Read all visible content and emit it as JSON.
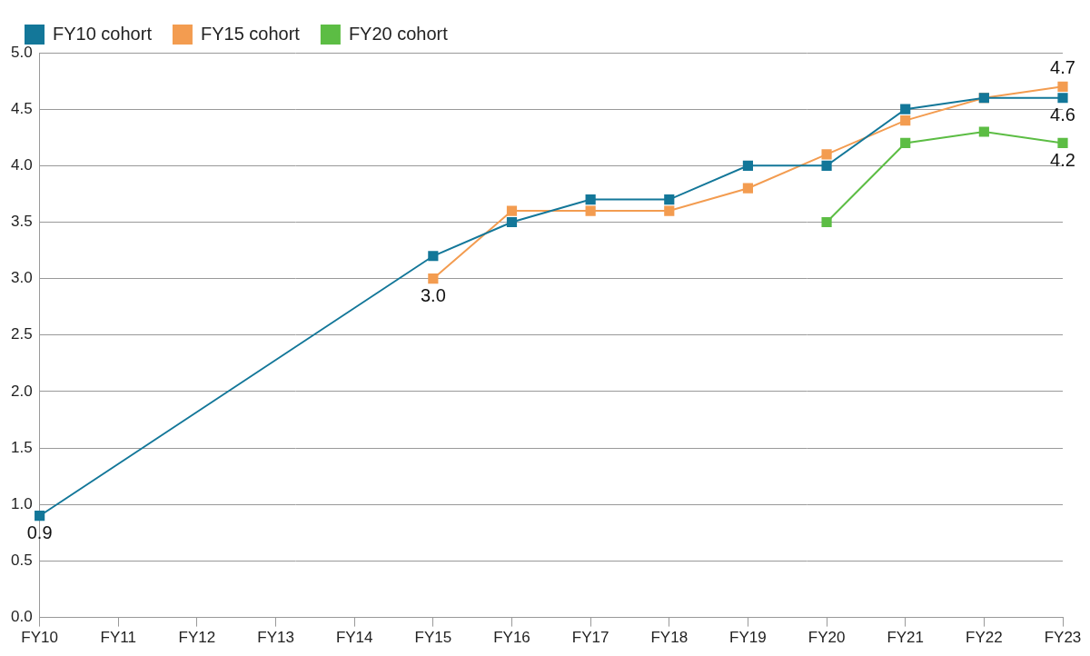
{
  "chart_data": {
    "type": "line",
    "categories": [
      "FY10",
      "FY11",
      "FY12",
      "FY13",
      "FY14",
      "FY15",
      "FY16",
      "FY17",
      "FY18",
      "FY19",
      "FY20",
      "FY21",
      "FY22",
      "FY23"
    ],
    "series": [
      {
        "name": "FY10 cohort",
        "color": "#137799",
        "marker": "square",
        "line_style": "solid",
        "values": [
          0.9,
          null,
          null,
          null,
          null,
          3.2,
          3.5,
          3.7,
          3.7,
          4.0,
          4.0,
          4.5,
          4.6,
          4.6
        ],
        "value_labels": [
          "0.9",
          null,
          null,
          null,
          null,
          null,
          null,
          null,
          null,
          null,
          null,
          null,
          null,
          "4.6"
        ]
      },
      {
        "name": "FY15 cohort",
        "color": "#f39c50",
        "marker": "square",
        "line_style": "solid",
        "values": [
          null,
          null,
          null,
          null,
          null,
          3.0,
          3.6,
          3.6,
          3.6,
          3.8,
          4.1,
          4.4,
          4.6,
          4.7
        ],
        "value_labels": [
          null,
          null,
          null,
          null,
          null,
          "3.0",
          null,
          null,
          null,
          null,
          null,
          null,
          null,
          "4.7"
        ]
      },
      {
        "name": "FY20 cohort",
        "color": "#5cbd44",
        "marker": "square",
        "line_style": "solid",
        "values": [
          null,
          null,
          null,
          null,
          null,
          null,
          null,
          null,
          null,
          null,
          3.5,
          4.2,
          4.3,
          4.2
        ],
        "value_labels": [
          null,
          null,
          null,
          null,
          null,
          null,
          null,
          null,
          null,
          null,
          null,
          null,
          null,
          "4.2"
        ]
      }
    ],
    "ylim": [
      0,
      5
    ],
    "yticks": [
      {
        "value": 0,
        "label": "0.0"
      },
      0.5,
      {
        "value": 1,
        "label": "1.0"
      },
      1.5,
      {
        "value": 2,
        "label": "2.0"
      },
      2.5,
      {
        "value": 3,
        "label": "3.0"
      },
      3.5,
      {
        "value": 4,
        "label": "4.0"
      },
      4.5,
      {
        "value": 5,
        "label": "5.0"
      }
    ],
    "grid": true,
    "legend": "top-left",
    "data_labels": true
  }
}
